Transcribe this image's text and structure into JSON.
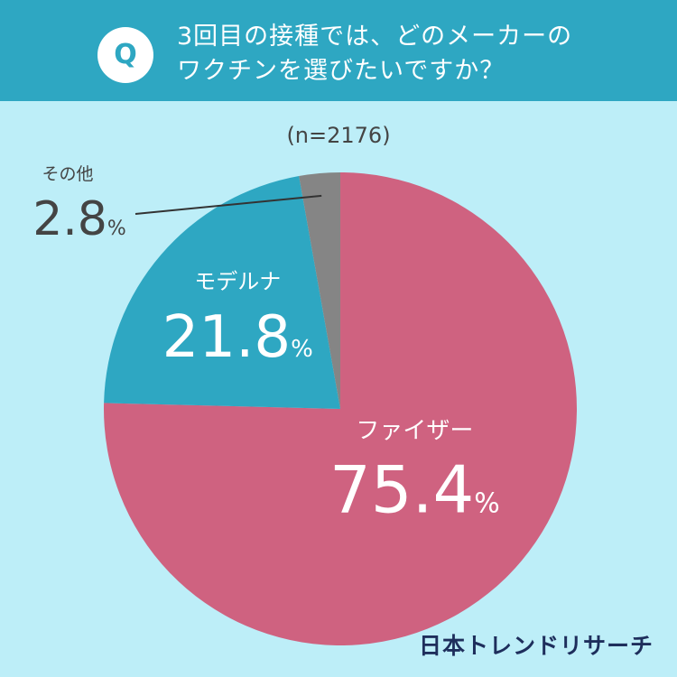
{
  "header": {
    "badge": "Q",
    "question_line1": "3回目の接種では、どのメーカーの",
    "question_line2": "ワクチンを選びたいですか？"
  },
  "sample_size": "(n=2176)",
  "chart_data": {
    "type": "pie",
    "slices": [
      {
        "label": "ファイザー",
        "value": 75.4,
        "color": "#cf6280"
      },
      {
        "label": "モデルナ",
        "value": 21.8,
        "color": "#2ea7c2"
      },
      {
        "label": "その他",
        "value": 2.8,
        "color": "#858585"
      }
    ],
    "value_format": "%",
    "start": "12 o'clock",
    "direction": "clockwise"
  },
  "brand": "日本トレンドリサーチ"
}
